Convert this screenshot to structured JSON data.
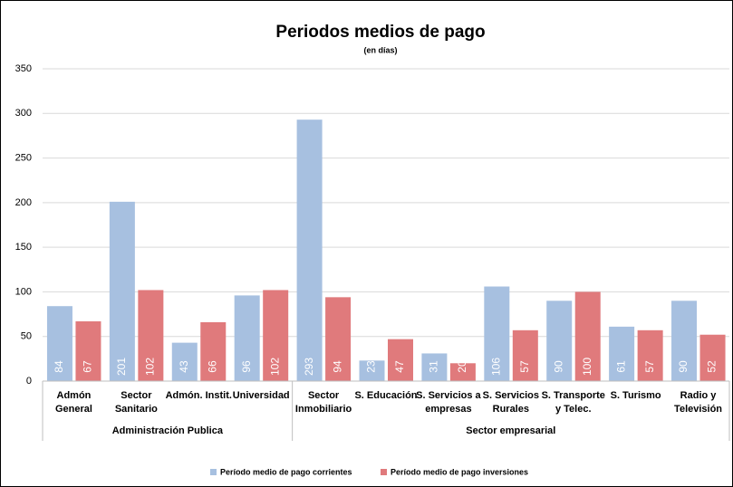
{
  "chart_data": {
    "type": "bar",
    "title": "Periodos medios de pago",
    "subtitle": "(en días)",
    "categories": [
      "Admón\nGeneral",
      "Sector\nSanitario",
      "Admón. Instit.",
      "Universidad",
      "Sector\nInmobiliario",
      "S. Educación",
      "S. Servicios a\nempresas",
      "S. Servicios\nRurales",
      "S. Transporte\ny Telec.",
      "S. Turismo",
      "Radio y\nTelevisión"
    ],
    "groups": [
      {
        "label": "Administración Publica",
        "size": 4
      },
      {
        "label": "Sector empresarial",
        "size": 7
      }
    ],
    "series": [
      {
        "name": "Período medio de pago corrientes",
        "color": "#a7c0e0",
        "values": [
          84,
          201,
          43,
          96,
          293,
          23,
          31,
          106,
          90,
          61,
          90
        ]
      },
      {
        "name": "Período medio de pago inversiones",
        "color": "#e07a7c",
        "values": [
          67,
          102,
          66,
          102,
          94,
          47,
          20,
          57,
          100,
          57,
          52
        ]
      }
    ],
    "ylim": [
      0,
      350
    ],
    "yticks": [
      0,
      50,
      100,
      150,
      200,
      250,
      300,
      350
    ],
    "grid": true,
    "legend": "bottom"
  }
}
